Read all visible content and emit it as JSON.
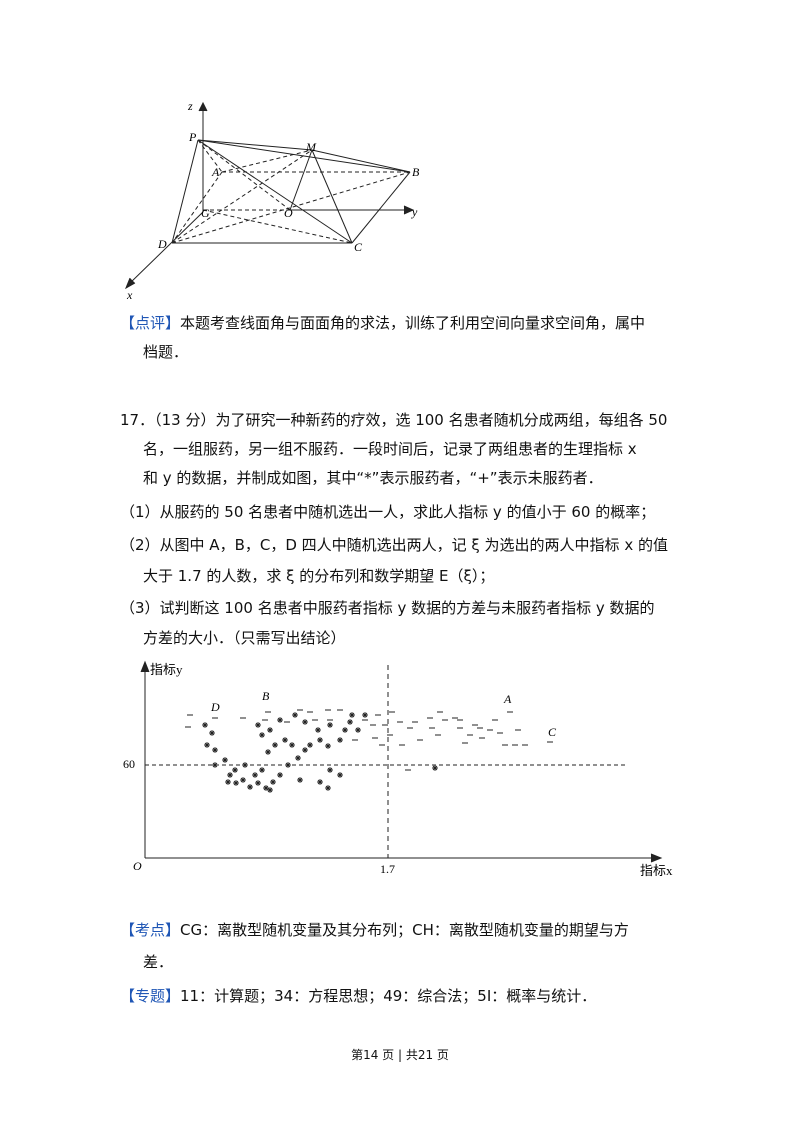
{
  "figure1": {
    "labels": [
      "z",
      "P",
      "M",
      "A",
      "B",
      "G",
      "O",
      "y",
      "D",
      "C",
      "x"
    ]
  },
  "comment": {
    "tag": "【点评】",
    "lines": [
      "本题考查线面角与面面角的求法，训练了利用空间向量求空间角，属中",
      "档题．"
    ]
  },
  "problem": {
    "lines": [
      "17．（13 分）为了研究一种新药的疗效，选 100 名患者随机分成两组，每组各 50",
      "名，一组服药，另一组不服药．一段时间后，记录了两组患者的生理指标 x",
      "和 y 的数据，并制成如图，其中“*”表示服药者，“+”表示未服药者．",
      "（1）从服药的 50 名患者中随机选出一人，求此人指标 y 的值小于 60 的概率；",
      "（2）从图中 A，B，C，D 四人中随机选出两人，记 ξ 为选出的两人中指标 x 的值",
      "大于 1.7 的人数，求 ξ 的分布列和数学期望 E（ξ）；",
      "（3）试判断这 100 名患者中服药者指标 y 数据的方差与未服药者指标 y 数据的",
      "方差的大小．（只需写出结论）"
    ]
  },
  "figure2": {
    "y_axis": "指标y",
    "x_axis": "指标x",
    "origin": "O",
    "y_mark": "60",
    "x_mark": "1.7",
    "points": [
      "D",
      "B",
      "A",
      "C"
    ]
  },
  "kaodian": {
    "tag": "【考点】",
    "lines": [
      "CG：离散型随机变量及其分布列；CH：离散型随机变量的期望与方",
      "差．"
    ]
  },
  "zhuanti": {
    "tag": "【专题】",
    "text": "11：计算题；34：方程思想；49：综合法；5I：概率与统计．"
  },
  "footer": "第14 页 | 共21 页"
}
